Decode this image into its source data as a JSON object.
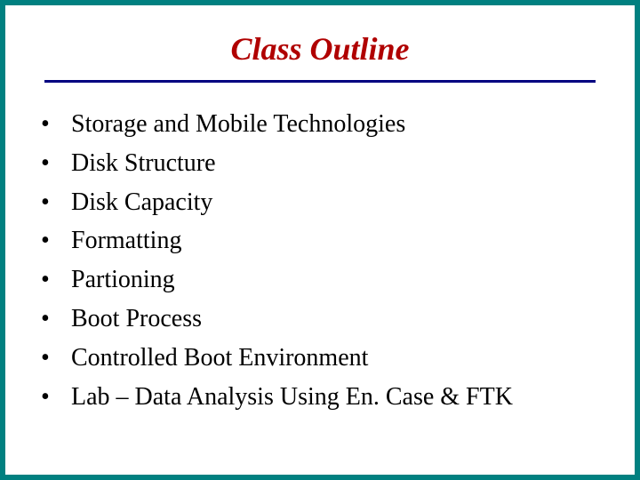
{
  "title": {
    "text": "Class Outline",
    "color": "#b00000",
    "fontsize": 36,
    "fontstyle": "italic",
    "fontweight": "bold"
  },
  "title_rule": {
    "color": "#000080",
    "thickness": 3
  },
  "frame": {
    "border_color": "#008080",
    "border_width": 6,
    "background_color": "#ffffff"
  },
  "bullets": {
    "marker": "•",
    "marker_color": "#000000",
    "text_color": "#000000",
    "fontsize": 28,
    "items": [
      "Storage and Mobile Technologies",
      "Disk Structure",
      "Disk Capacity",
      "Formatting",
      "Partioning",
      "Boot Process",
      "Controlled Boot Environment",
      "Lab – Data Analysis Using En. Case & FTK"
    ]
  }
}
